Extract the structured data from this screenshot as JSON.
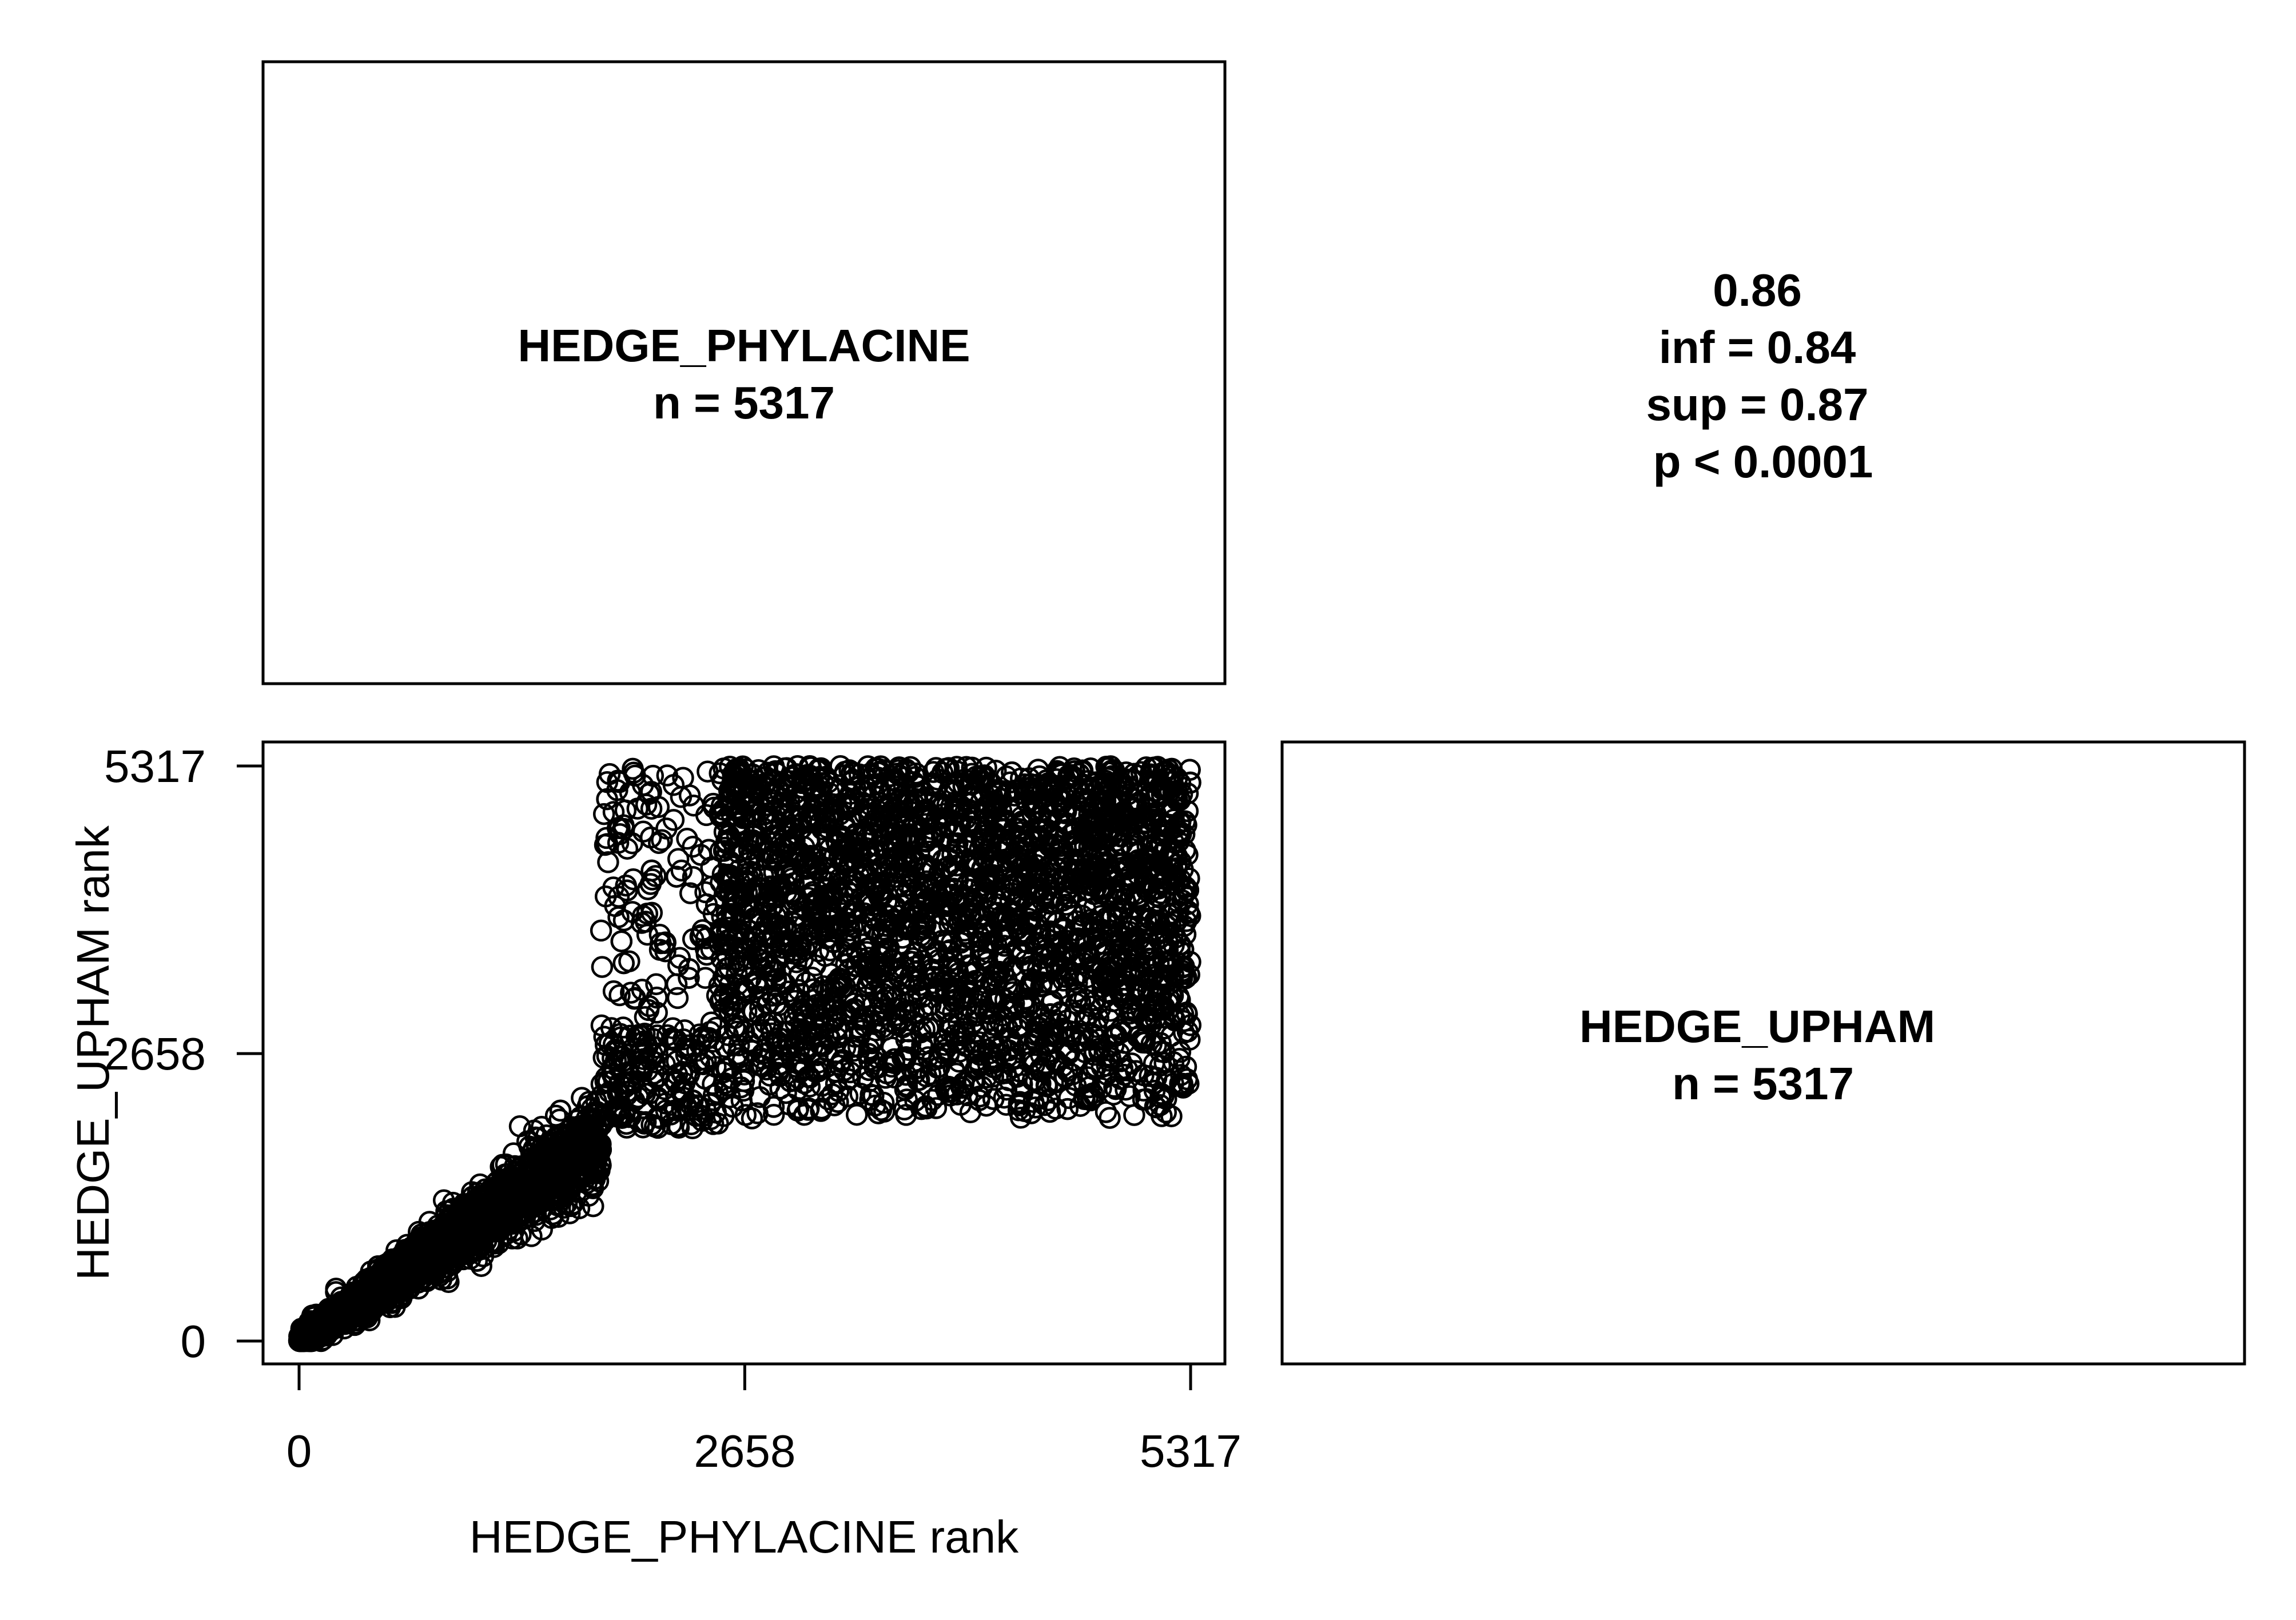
{
  "chart_data": {
    "type": "scatter",
    "panels": {
      "diag_top_left": {
        "name": "HEDGE_PHYLACINE",
        "n_text": "n =  5317"
      },
      "diag_bottom_right": {
        "name": "HEDGE_UPHAM",
        "n_text": "n =  5317"
      },
      "stats": {
        "value": "0.86",
        "inf": "inf =  0.84",
        "sup": "sup =  0.87",
        "p": "p < 0.0001"
      }
    },
    "scatter": {
      "xlabel": "HEDGE_PHYLACINE rank",
      "ylabel": "HEDGE_UPHAM rank",
      "xlim": [
        0,
        5317
      ],
      "ylim": [
        0,
        5317
      ],
      "x_ticks": [
        "0",
        "2658",
        "5317"
      ],
      "y_ticks": [
        "0",
        "2658",
        "5317"
      ],
      "n_points": 5317,
      "marker": "open-circle",
      "regions": [
        {
          "x": [
            0,
            1800
          ],
          "relation": "y ≈ x",
          "spread": 150
        },
        {
          "x": [
            1800,
            2500
          ],
          "y": [
            1900,
            5317
          ],
          "density": "sparse"
        },
        {
          "x": [
            2500,
            5317
          ],
          "y": [
            2000,
            5317
          ],
          "density": "dense"
        }
      ]
    }
  }
}
